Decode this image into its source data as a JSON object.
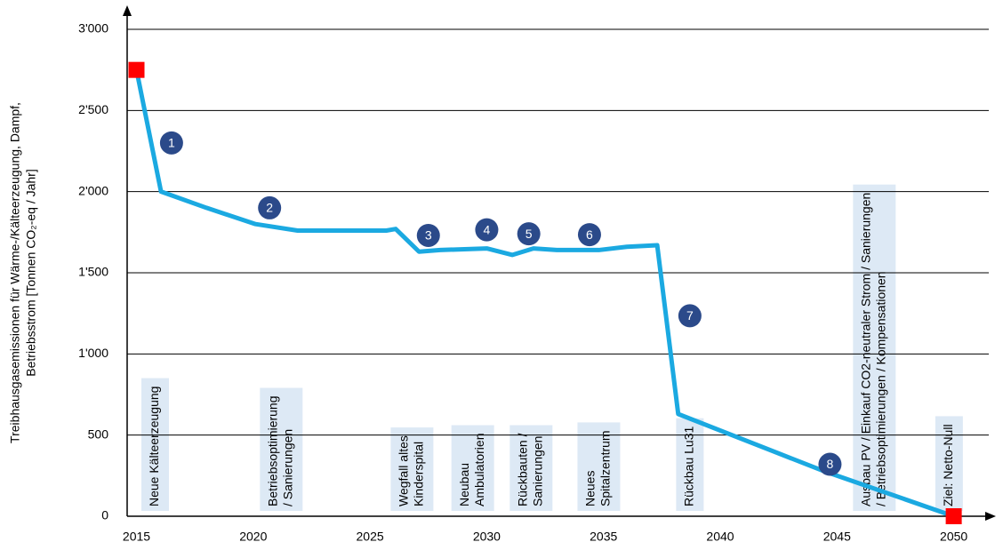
{
  "chart_data": {
    "type": "line",
    "y_label": [
      "Treibhausgasemissionen für Wärme-/Kälteerzeugung, Dampf,",
      "Betriebsstrom [Tonnen CO₂-eq / Jahr]"
    ],
    "x": [
      2015,
      2016.05,
      2018,
      2020.1,
      2021.9,
      2025.7,
      2026.1,
      2027.1,
      2028,
      2030,
      2031.1,
      2032,
      2033,
      2034.8,
      2036,
      2037.3,
      2038.2,
      2044.4,
      2050
    ],
    "series": [
      {
        "color": "#1ba9e1",
        "values": [
          2750,
          2000,
          1900,
          1800,
          1760,
          1760,
          1770,
          1630,
          1640,
          1650,
          1610,
          1650,
          1640,
          1640,
          1660,
          1670,
          630,
          280,
          0
        ]
      }
    ],
    "endpoint_color": "#ff0000",
    "xlim": [
      2014.6,
      2051.5
    ],
    "ylim": [
      0,
      3000
    ],
    "xticks": [
      2015,
      2020,
      2025,
      2030,
      2035,
      2040,
      2045,
      2050
    ],
    "yticks": [
      0,
      500,
      {
        "value": 1000,
        "label": "1'000"
      },
      {
        "value": 1500,
        "label": "1'500"
      },
      {
        "value": 2000,
        "label": "2'000"
      },
      {
        "value": 2500,
        "label": "2'500"
      },
      {
        "value": 3000,
        "label": "3'000"
      }
    ],
    "grid": true,
    "marker_color": "#2b4a8a",
    "markers": [
      {
        "label": "1",
        "x": 2016.5,
        "y": 2300
      },
      {
        "label": "2",
        "x": 2020.7,
        "y": 1900
      },
      {
        "label": "3",
        "x": 2027.5,
        "y": 1730
      },
      {
        "label": "4",
        "x": 2030.0,
        "y": 1765
      },
      {
        "label": "5",
        "x": 2031.8,
        "y": 1740
      },
      {
        "label": "6",
        "x": 2034.4,
        "y": 1735
      },
      {
        "label": "7",
        "x": 2038.7,
        "y": 1235
      },
      {
        "label": "8",
        "x": 2044.7,
        "y": 320
      }
    ],
    "box_color": "#dde9f5",
    "boxes": [
      {
        "x": 2015.8,
        "lines": [
          "Neue Kälteerzeugung"
        ]
      },
      {
        "x": 2021.2,
        "lines": [
          "Betriebsoptimierung",
          "/ Sanierungen"
        ]
      },
      {
        "x": 2026.8,
        "lines": [
          "Wegfall altes",
          "Kinderspital"
        ]
      },
      {
        "x": 2029.4,
        "lines": [
          "Neubau",
          "Ambulatorien"
        ]
      },
      {
        "x": 2031.9,
        "lines": [
          "Rückbauten /",
          "Sanierungen"
        ]
      },
      {
        "x": 2034.8,
        "lines": [
          "Neues",
          "Spitalzentrum"
        ]
      },
      {
        "x": 2038.7,
        "lines": [
          "Rückbau Lu31"
        ]
      },
      {
        "x": 2046.6,
        "lines": [
          "Ausbau PV / Einkauf CO2-neutraler Strom / Sanierungen",
          "/ Betriebsoptimierungen / Kompensationen"
        ]
      },
      {
        "x": 2049.8,
        "lines": [
          "Ziel: Netto-Null"
        ]
      }
    ]
  }
}
